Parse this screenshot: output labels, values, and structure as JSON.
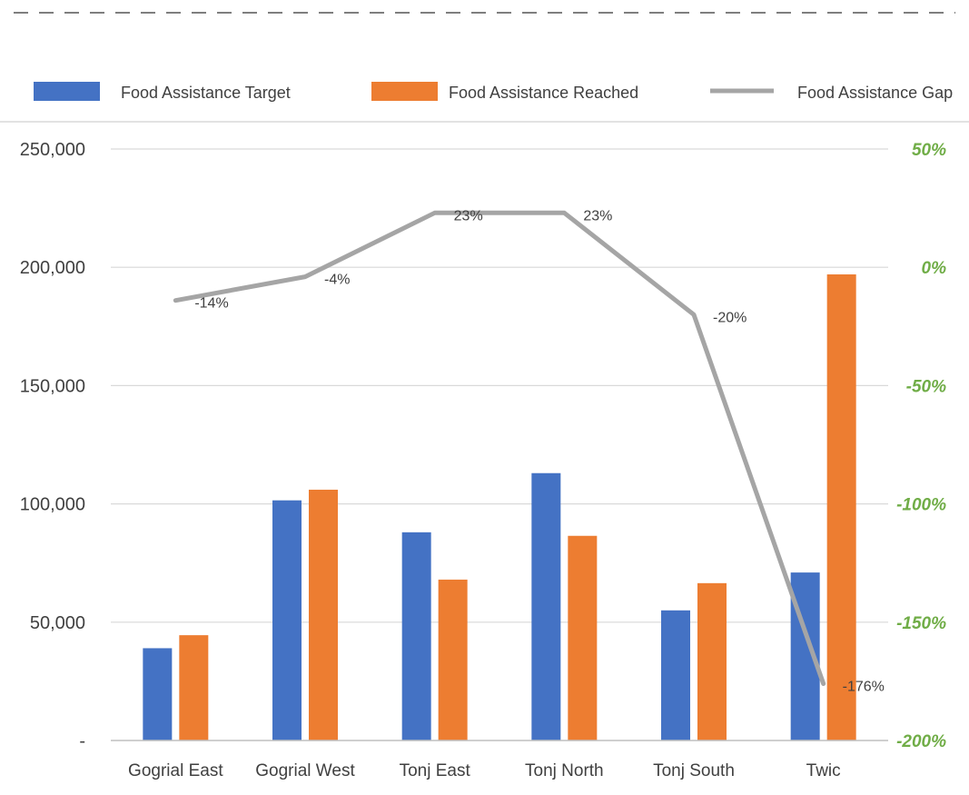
{
  "chart_data": {
    "type": "bar",
    "categories": [
      "Gogrial East",
      "Gogrial West",
      "Tonj East",
      "Tonj North",
      "Tonj South",
      "Twic"
    ],
    "series": [
      {
        "name": "Food Assistance Target",
        "type": "bar",
        "axis": "left",
        "color": "#4472C4",
        "values": [
          39000,
          101500,
          88000,
          113000,
          55000,
          71000
        ]
      },
      {
        "name": "Food Assistance Reached",
        "type": "bar",
        "axis": "left",
        "color": "#ED7D31",
        "values": [
          44500,
          106000,
          68000,
          86500,
          66500,
          197000
        ]
      },
      {
        "name": "Food Assistance Gap",
        "type": "line",
        "axis": "right",
        "color": "#A5A5A5",
        "values": [
          -14,
          -4,
          23,
          23,
          -20,
          -176
        ],
        "labels": [
          "-14%",
          "-4%",
          "23%",
          "23%",
          "-20%",
          "-176%"
        ]
      }
    ],
    "y_left": {
      "ylim": [
        0,
        250000
      ],
      "ticks": [
        0,
        50000,
        100000,
        150000,
        200000,
        250000
      ],
      "tick_labels": [
        "-",
        "50,000",
        "100,000",
        "150,000",
        "200,000",
        "250,000"
      ]
    },
    "y_right": {
      "ylim": [
        -200,
        50
      ],
      "ticks": [
        -200,
        -150,
        -100,
        -50,
        0,
        50
      ],
      "tick_labels": [
        "-200%",
        "-150%",
        "-100%",
        "-50%",
        "0%",
        "50%"
      ],
      "color": "#70AD47"
    },
    "grid": true,
    "legend_position": "top"
  }
}
